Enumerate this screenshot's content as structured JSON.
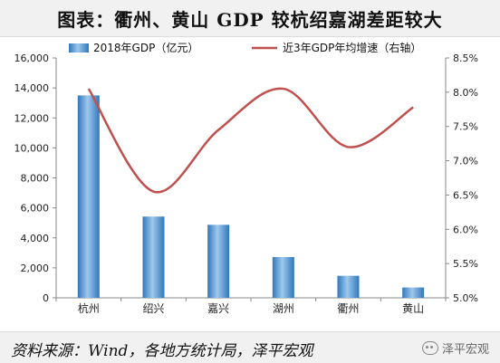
{
  "title": "图表：衢州、黄山 GDP 较杭绍嘉湖差距较大",
  "source": "资料来源：Wind，各地方统计局，泽平宏观",
  "watermark": {
    "text": "泽平宏观",
    "icon": "wechat-icon"
  },
  "colors": {
    "bar": "#2e78bd",
    "bar_light": "#9ec8ec",
    "line": "#c0504d"
  },
  "chart_data": {
    "type": "bar",
    "categories": [
      "杭州",
      "绍兴",
      "嘉兴",
      "湖州",
      "衢州",
      "黄山"
    ],
    "series": [
      {
        "name": "2018年GDP（亿元）",
        "type": "bar",
        "axis": "left",
        "values": [
          13500,
          5420,
          4870,
          2720,
          1470,
          690
        ]
      },
      {
        "name": "近3年GDP年均增速（右轴）",
        "type": "line",
        "axis": "right",
        "values": [
          8.05,
          6.55,
          7.45,
          8.05,
          7.2,
          7.78
        ]
      }
    ],
    "y_left": {
      "range": [
        0,
        16000
      ],
      "ticks": [
        "0",
        "2,000",
        "4,000",
        "6,000",
        "8,000",
        "10,000",
        "12,000",
        "14,000",
        "16,000"
      ]
    },
    "y_right": {
      "range": [
        5.0,
        8.5
      ],
      "ticks": [
        "5.0%",
        "5.5%",
        "6.0%",
        "6.5%",
        "7.0%",
        "7.5%",
        "8.0%",
        "8.5%"
      ]
    },
    "legend": {
      "position": "top"
    },
    "grid": false
  }
}
